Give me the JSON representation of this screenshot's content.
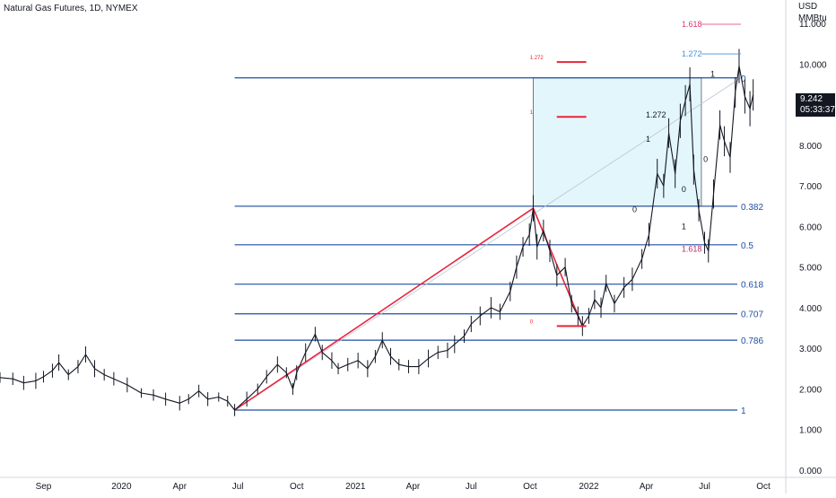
{
  "header": {
    "title": "Natural Gas Futures, 1D, NYMEX",
    "currency": "USD",
    "unit": "MMBtu"
  },
  "last_price": {
    "value": "9.242",
    "countdown": "05:33:37"
  },
  "colors": {
    "price": "#131722",
    "fib_line": "#1e4fa3",
    "fib_label": "#1e4fa3",
    "trend": "#e8243c",
    "box_fill": "#e3f6fb",
    "box_border": "#5a5a5a",
    "ext_1618": "#e0336e",
    "ext_1272": "#4a8fd8",
    "axis_text": "#131722"
  },
  "chart_data": {
    "type": "line",
    "title": "Natural Gas Futures, 1D, NYMEX",
    "ylabel": "USD MMBtu",
    "ylim": [
      0,
      11.4
    ],
    "xlim": [
      "2019-06-25",
      "2022-11-05"
    ],
    "yticks": [
      "0.000",
      "1.000",
      "2.000",
      "3.000",
      "4.000",
      "5.000",
      "6.000",
      "7.000",
      "8.000",
      "9.000",
      "10.000",
      "11.000"
    ],
    "xticks": [
      {
        "label": "Sep",
        "date": "2019-09-01"
      },
      {
        "label": "2020",
        "date": "2020-01-01"
      },
      {
        "label": "Apr",
        "date": "2020-04-01"
      },
      {
        "label": "Jul",
        "date": "2020-07-01"
      },
      {
        "label": "Oct",
        "date": "2020-10-01"
      },
      {
        "label": "2021",
        "date": "2021-01-01"
      },
      {
        "label": "Apr",
        "date": "2021-04-01"
      },
      {
        "label": "Jul",
        "date": "2021-07-01"
      },
      {
        "label": "Oct",
        "date": "2021-10-01"
      },
      {
        "label": "2022",
        "date": "2022-01-01"
      },
      {
        "label": "Apr",
        "date": "2022-04-01"
      },
      {
        "label": "Jul",
        "date": "2022-07-01"
      },
      {
        "label": "Oct",
        "date": "2022-10-01"
      }
    ],
    "series": [
      {
        "values": [
          [
            "2019-06-25",
            2.28
          ],
          [
            "2019-07-15",
            2.25
          ],
          [
            "2019-08-01",
            2.15
          ],
          [
            "2019-08-20",
            2.2
          ],
          [
            "2019-09-01",
            2.3
          ],
          [
            "2019-09-15",
            2.45
          ],
          [
            "2019-09-25",
            2.65
          ],
          [
            "2019-10-10",
            2.35
          ],
          [
            "2019-10-25",
            2.55
          ],
          [
            "2019-11-06",
            2.85
          ],
          [
            "2019-11-20",
            2.5
          ],
          [
            "2019-12-05",
            2.35
          ],
          [
            "2019-12-20",
            2.25
          ],
          [
            "2020-01-10",
            2.1
          ],
          [
            "2020-02-01",
            1.9
          ],
          [
            "2020-02-20",
            1.85
          ],
          [
            "2020-03-10",
            1.75
          ],
          [
            "2020-04-01",
            1.65
          ],
          [
            "2020-04-15",
            1.75
          ],
          [
            "2020-05-01",
            1.95
          ],
          [
            "2020-05-15",
            1.75
          ],
          [
            "2020-06-01",
            1.8
          ],
          [
            "2020-06-15",
            1.7
          ],
          [
            "2020-06-26",
            1.48
          ],
          [
            "2020-07-15",
            1.75
          ],
          [
            "2020-08-01",
            2.0
          ],
          [
            "2020-08-15",
            2.3
          ],
          [
            "2020-09-01",
            2.6
          ],
          [
            "2020-09-15",
            2.4
          ],
          [
            "2020-09-25",
            2.0
          ],
          [
            "2020-10-01",
            2.4
          ],
          [
            "2020-10-15",
            2.9
          ],
          [
            "2020-10-30",
            3.35
          ],
          [
            "2020-11-10",
            2.9
          ],
          [
            "2020-11-25",
            2.7
          ],
          [
            "2020-12-05",
            2.5
          ],
          [
            "2020-12-20",
            2.6
          ],
          [
            "2021-01-05",
            2.7
          ],
          [
            "2021-01-20",
            2.5
          ],
          [
            "2021-02-01",
            2.8
          ],
          [
            "2021-02-12",
            3.2
          ],
          [
            "2021-02-25",
            2.8
          ],
          [
            "2021-03-10",
            2.6
          ],
          [
            "2021-03-25",
            2.55
          ],
          [
            "2021-04-10",
            2.55
          ],
          [
            "2021-04-25",
            2.75
          ],
          [
            "2021-05-10",
            2.9
          ],
          [
            "2021-05-25",
            2.95
          ],
          [
            "2021-06-05",
            3.1
          ],
          [
            "2021-06-20",
            3.3
          ],
          [
            "2021-07-01",
            3.6
          ],
          [
            "2021-07-15",
            3.8
          ],
          [
            "2021-08-01",
            4.0
          ],
          [
            "2021-08-15",
            3.9
          ],
          [
            "2021-08-31",
            4.4
          ],
          [
            "2021-09-10",
            5.0
          ],
          [
            "2021-09-20",
            5.5
          ],
          [
            "2021-09-30",
            5.8
          ],
          [
            "2021-10-06",
            6.45
          ],
          [
            "2021-10-12",
            5.5
          ],
          [
            "2021-10-22",
            5.9
          ],
          [
            "2021-11-01",
            5.4
          ],
          [
            "2021-11-12",
            4.8
          ],
          [
            "2021-11-25",
            5.0
          ],
          [
            "2021-12-05",
            4.1
          ],
          [
            "2021-12-15",
            3.8
          ],
          [
            "2021-12-22",
            3.55
          ],
          [
            "2022-01-01",
            3.8
          ],
          [
            "2022-01-10",
            4.2
          ],
          [
            "2022-01-20",
            4.0
          ],
          [
            "2022-01-28",
            4.6
          ],
          [
            "2022-02-10",
            4.1
          ],
          [
            "2022-02-25",
            4.5
          ],
          [
            "2022-03-10",
            4.7
          ],
          [
            "2022-03-25",
            5.2
          ],
          [
            "2022-04-05",
            5.8
          ],
          [
            "2022-04-18",
            7.3
          ],
          [
            "2022-04-28",
            7.0
          ],
          [
            "2022-05-06",
            8.3
          ],
          [
            "2022-05-16",
            7.3
          ],
          [
            "2022-05-24",
            8.6
          ],
          [
            "2022-06-01",
            9.1
          ],
          [
            "2022-06-08",
            9.5
          ],
          [
            "2022-06-14",
            7.4
          ],
          [
            "2022-06-22",
            6.4
          ],
          [
            "2022-07-01",
            5.6
          ],
          [
            "2022-07-07",
            5.4
          ],
          [
            "2022-07-15",
            6.8
          ],
          [
            "2022-07-25",
            8.5
          ],
          [
            "2022-08-01",
            8.1
          ],
          [
            "2022-08-10",
            7.7
          ],
          [
            "2022-08-18",
            9.3
          ],
          [
            "2022-08-24",
            9.95
          ],
          [
            "2022-09-02",
            9.2
          ],
          [
            "2022-09-10",
            8.9
          ],
          [
            "2022-09-15",
            9.24
          ]
        ]
      }
    ],
    "fibonacci_retracement": [
      {
        "level": "0",
        "price": 9.66
      },
      {
        "level": "0.382",
        "price": 6.5
      },
      {
        "level": "0.5",
        "price": 5.55
      },
      {
        "level": "0.618",
        "price": 4.58
      },
      {
        "level": "0.707",
        "price": 3.85
      },
      {
        "level": "0.786",
        "price": 3.2
      },
      {
        "level": "1",
        "price": 1.48
      }
    ],
    "trend_lines": [
      {
        "from": [
          "2020-06-26",
          1.48
        ],
        "to": [
          "2021-10-06",
          6.45
        ]
      },
      {
        "from": [
          "2021-10-06",
          6.45
        ],
        "to": [
          "2021-12-22",
          3.55
        ]
      }
    ],
    "trend_fib_labels": [
      {
        "text": "1.272",
        "price": 10.05
      },
      {
        "text": "1",
        "price": 8.7
      },
      {
        "text": "0",
        "price": 3.55
      }
    ],
    "swing_labels": [
      {
        "text": "1.272",
        "date": "2022-05-01",
        "price": 8.75
      },
      {
        "text": "1",
        "date": "2022-05-01",
        "price": 8.15
      },
      {
        "text": "0",
        "date": "2022-04-10",
        "price": 6.42
      },
      {
        "text": "0",
        "date": "2022-06-26",
        "price": 6.92
      },
      {
        "text": "1",
        "date": "2022-06-26",
        "price": 6.0
      },
      {
        "text": "1.618",
        "date": "2022-06-26",
        "price": 5.45
      },
      {
        "text": "0",
        "date": "2022-07-30",
        "price": 7.65
      },
      {
        "text": "1",
        "date": "2022-08-10",
        "price": 9.75
      }
    ],
    "extension_levels": [
      {
        "level": "1.618",
        "price": 10.98
      },
      {
        "level": "1.272",
        "price": 10.25
      }
    ]
  }
}
